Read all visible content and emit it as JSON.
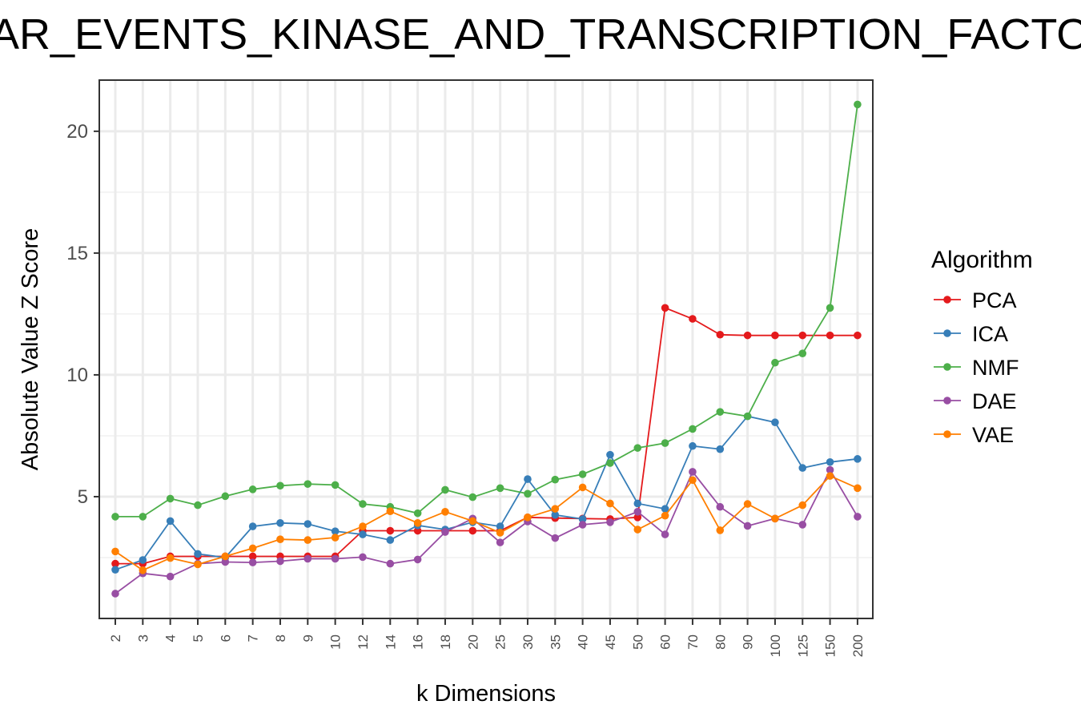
{
  "chart_data": {
    "type": "line",
    "title": "AR_EVENTS_KINASE_AND_TRANSCRIPTION_FACTO",
    "xlabel": "k Dimensions",
    "ylabel": "Absolute Value Z Score",
    "categories": [
      "2",
      "3",
      "4",
      "5",
      "6",
      "7",
      "8",
      "9",
      "10",
      "12",
      "14",
      "16",
      "18",
      "20",
      "25",
      "30",
      "35",
      "40",
      "45",
      "50",
      "60",
      "70",
      "80",
      "90",
      "100",
      "125",
      "150",
      "200"
    ],
    "yticks": [
      5,
      10,
      15,
      20
    ],
    "ylim": [
      0,
      22.1
    ],
    "grid": true,
    "legend": {
      "title": "Algorithm",
      "position": "right"
    },
    "series": [
      {
        "name": "PCA",
        "color": "#e41a1c",
        "values": [
          2.25,
          2.25,
          2.55,
          2.55,
          2.55,
          2.55,
          2.55,
          2.55,
          2.55,
          3.6,
          3.6,
          3.6,
          3.6,
          3.6,
          3.6,
          4.15,
          4.12,
          4.1,
          4.08,
          4.15,
          12.75,
          12.3,
          11.65,
          11.62,
          11.62,
          11.62,
          11.62,
          11.62
        ]
      },
      {
        "name": "ICA",
        "color": "#377eb8",
        "values": [
          2.0,
          2.4,
          4.0,
          2.65,
          2.5,
          3.78,
          3.92,
          3.88,
          3.58,
          3.45,
          3.22,
          3.82,
          3.65,
          3.95,
          3.78,
          5.72,
          4.25,
          4.08,
          6.72,
          4.72,
          4.5,
          7.08,
          6.95,
          8.3,
          8.05,
          6.18,
          6.42,
          6.55
        ]
      },
      {
        "name": "NMF",
        "color": "#4daf4a",
        "values": [
          4.18,
          4.18,
          4.92,
          4.65,
          5.02,
          5.3,
          5.45,
          5.52,
          5.48,
          4.7,
          4.58,
          4.32,
          5.28,
          4.98,
          5.35,
          5.12,
          5.7,
          5.92,
          6.38,
          7.0,
          7.2,
          7.78,
          8.48,
          8.3,
          10.5,
          10.88,
          12.75,
          21.1
        ]
      },
      {
        "name": "DAE",
        "color": "#984ea3",
        "values": [
          1.02,
          1.85,
          1.72,
          2.25,
          2.32,
          2.3,
          2.35,
          2.45,
          2.45,
          2.52,
          2.25,
          2.42,
          3.55,
          4.1,
          3.12,
          3.98,
          3.3,
          3.85,
          3.95,
          4.38,
          3.45,
          6.02,
          4.58,
          3.8,
          4.1,
          3.85,
          6.1,
          4.18
        ]
      },
      {
        "name": "VAE",
        "color": "#ff7f00",
        "values": [
          2.75,
          1.98,
          2.48,
          2.22,
          2.55,
          2.88,
          3.25,
          3.22,
          3.32,
          3.78,
          4.4,
          3.92,
          4.38,
          4.0,
          3.52,
          4.15,
          4.5,
          5.38,
          4.72,
          3.65,
          4.22,
          5.68,
          3.62,
          4.7,
          4.1,
          4.65,
          5.85,
          5.35
        ]
      }
    ]
  }
}
